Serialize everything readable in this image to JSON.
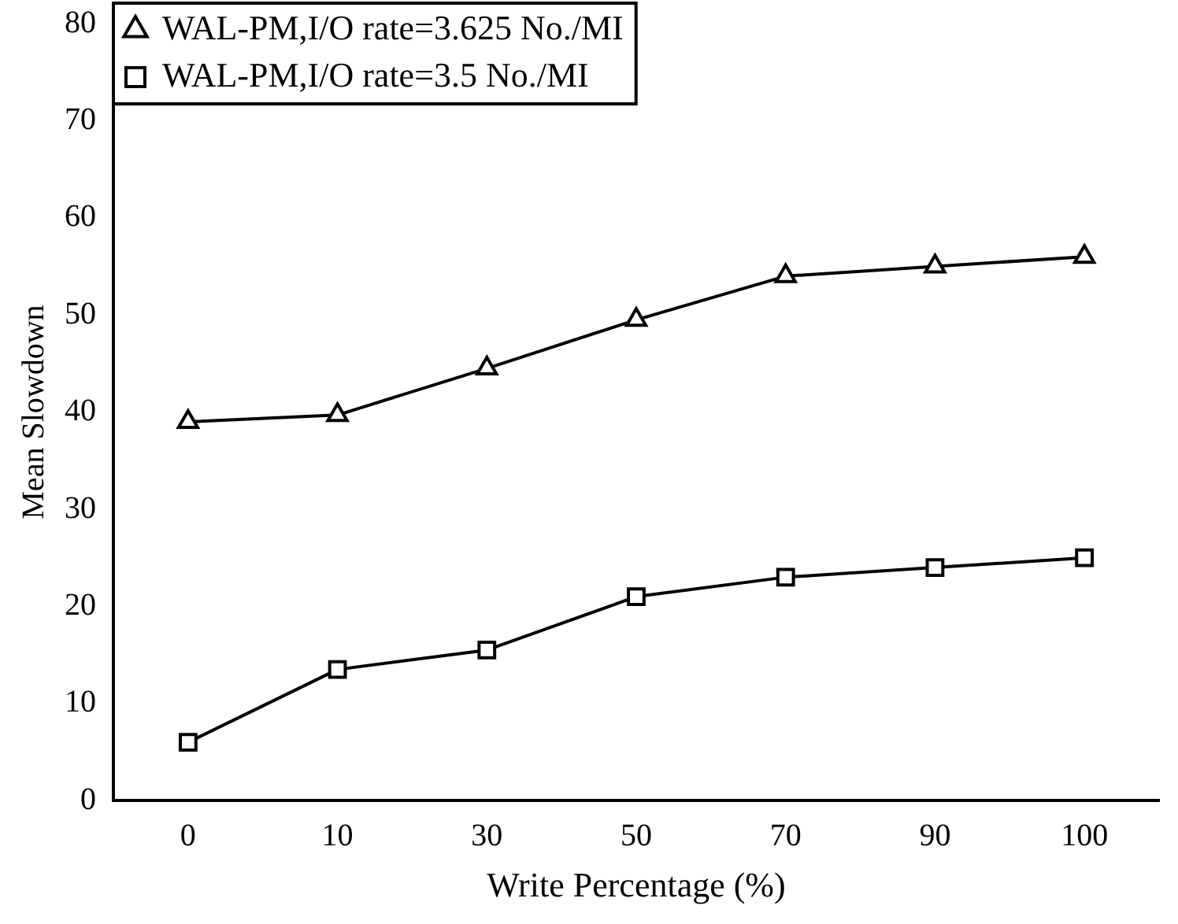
{
  "chart_data": {
    "type": "line",
    "xlabel": "Write Percentage (%)",
    "ylabel": "Mean Slowdown",
    "categories": [
      "0",
      "10",
      "30",
      "50",
      "70",
      "90",
      "100"
    ],
    "ylim": [
      0,
      80
    ],
    "yticks": [
      0,
      10,
      20,
      30,
      40,
      50,
      60,
      70,
      80
    ],
    "grid": false,
    "legend": "top left",
    "series": [
      {
        "name": "WAL-PM,I/O rate=3.625 No./MI",
        "color": "#000000",
        "marker": "triangle",
        "values": [
          39,
          39.7,
          44.5,
          49.5,
          54,
          55,
          56
        ]
      },
      {
        "name": "WAL-PM,I/O rate=3.5 No./MI",
        "color": "#000000",
        "marker": "square",
        "values": [
          6,
          13.5,
          15.5,
          21,
          23,
          24,
          25
        ]
      }
    ]
  }
}
